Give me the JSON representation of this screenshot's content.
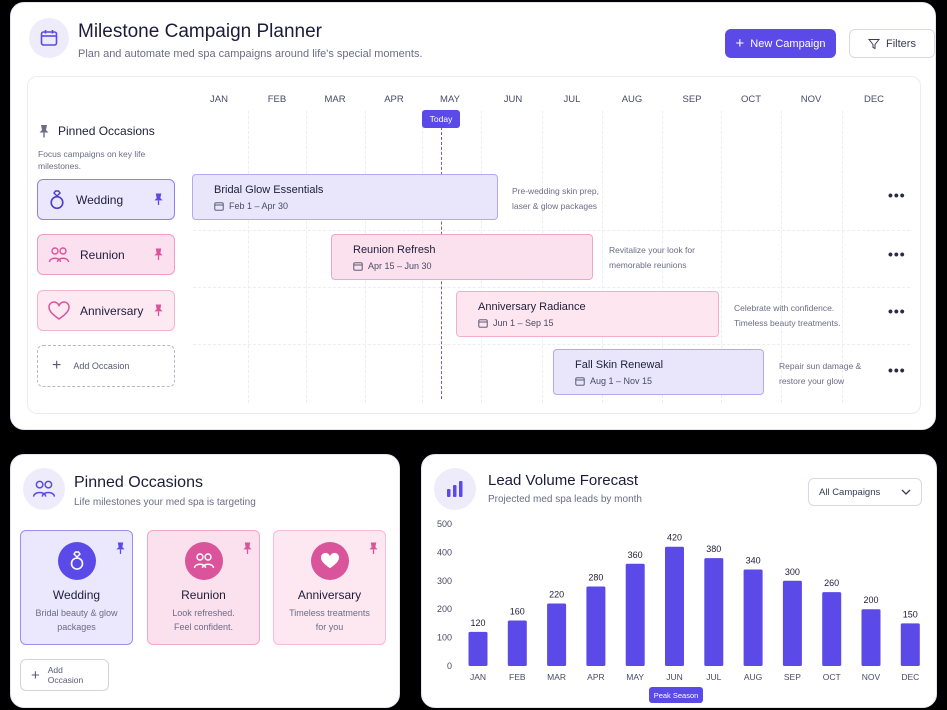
{
  "planner": {
    "title": "Milestone Campaign Planner",
    "subtitle": "Plan and automate med spa campaigns around life's special moments.",
    "new_campaign_label": "New Campaign",
    "filters_label": "Filters",
    "months": [
      "JAN",
      "FEB",
      "MAR",
      "APR",
      "MAY",
      "JUN",
      "JUL",
      "AUG",
      "SEP",
      "OCT",
      "NOV",
      "DEC"
    ],
    "today_label": "Today",
    "pinned_title": "Pinned Occasions",
    "pinned_desc": "Focus campaigns on key life milestones.",
    "occasions": [
      {
        "label": "Wedding",
        "icon": "ring-icon"
      },
      {
        "label": "Reunion",
        "icon": "people-icon"
      },
      {
        "label": "Anniversary",
        "icon": "heart-icon"
      }
    ],
    "add_occasion_label": "Add Occasion",
    "campaigns": [
      {
        "name": "Bridal Glow Essentials",
        "dates": "Feb 1 – Apr 30",
        "note_1": "Pre-wedding skin prep,",
        "note_2": "laser & glow packages"
      },
      {
        "name": "Reunion Refresh",
        "dates": "Apr 15 – Jun 30",
        "note_1": "Revitalize your look for",
        "note_2": "memorable reunions"
      },
      {
        "name": "Anniversary Radiance",
        "dates": "Jun 1 – Sep 15",
        "note_1": "Celebrate with confidence.",
        "note_2": "Timeless beauty treatments."
      },
      {
        "name": "Fall Skin Renewal",
        "dates": "Aug 1 – Nov 15",
        "note_1": "Repair sun damage &",
        "note_2": "restore your glow"
      }
    ]
  },
  "pinned_panel": {
    "title": "Pinned Occasions",
    "subtitle": "Life milestones your med spa is targeting",
    "cards": [
      {
        "name": "Wedding",
        "desc_1": "Bridal beauty & glow",
        "desc_2": "packages",
        "icon": "ring-icon"
      },
      {
        "name": "Reunion",
        "desc_1": "Look refreshed.",
        "desc_2": "Feel confident.",
        "icon": "people-icon"
      },
      {
        "name": "Anniversary",
        "desc_1": "Timeless treatments",
        "desc_2": "for you",
        "icon": "heart-icon"
      }
    ],
    "add_occasion_label": "Add Occasion"
  },
  "leads_panel": {
    "title": "Lead Volume Forecast",
    "subtitle": "Projected med spa leads by month",
    "select_value": "All Campaigns",
    "peak_label": "Peak Season"
  },
  "chart_data": {
    "type": "bar",
    "categories": [
      "JAN",
      "FEB",
      "MAR",
      "APR",
      "MAY",
      "JUN",
      "JUL",
      "AUG",
      "SEP",
      "OCT",
      "NOV",
      "DEC"
    ],
    "values": [
      120,
      160,
      220,
      280,
      360,
      420,
      380,
      340,
      300,
      260,
      200,
      150
    ],
    "ylim": [
      0,
      500
    ],
    "yticks": [
      0,
      100,
      200,
      300,
      400,
      500
    ],
    "bar_color": "#5b4ae8",
    "grid": false
  },
  "colors": {
    "accent": "#5b4ae8",
    "purple_bg": "#ebe7fc",
    "pink_bg": "#fbe1ef",
    "pink_accent": "#d9549a"
  }
}
